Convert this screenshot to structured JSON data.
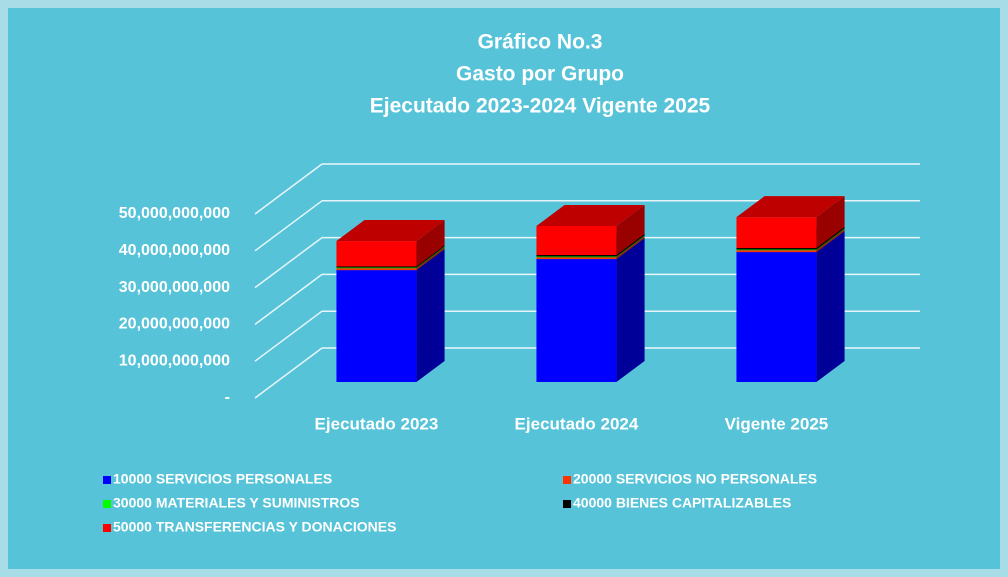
{
  "chart_data": {
    "type": "bar3d_stacked",
    "title": [
      "Gráfico No.3",
      "Gasto por Grupo",
      "Ejecutado 2023-2024 Vigente 2025"
    ],
    "categories": [
      "Ejecutado 2023",
      "Ejecutado 2024",
      "Vigente 2025"
    ],
    "series": [
      {
        "name": "10000  SERVICIOS PERSONALES",
        "color": "#0000ff",
        "values": [
          30400000000,
          33400000000,
          35300000000
        ]
      },
      {
        "name": "20000  SERVICIOS NO PERSONALES",
        "color": "#ff3300",
        "values": [
          500000000,
          500000000,
          500000000
        ]
      },
      {
        "name": "30000  MATERIALES Y SUMINISTROS",
        "color": "#00ff00",
        "values": [
          200000000,
          200000000,
          200000000
        ]
      },
      {
        "name": "40000  BIENES CAPITALIZABLES",
        "color": "#000000",
        "values": [
          300000000,
          400000000,
          400000000
        ]
      },
      {
        "name": "50000  TRANSFERENCIAS Y DONACIONES",
        "color": "#ff0000",
        "values": [
          6900000000,
          7900000000,
          8400000000
        ]
      }
    ],
    "ylim": [
      0,
      50000000000
    ],
    "yticks": [
      {
        "value": 0,
        "label": "-"
      },
      {
        "value": 10000000000,
        "label": "10,000,000,000"
      },
      {
        "value": 20000000000,
        "label": "20,000,000,000"
      },
      {
        "value": 30000000000,
        "label": "30,000,000,000"
      },
      {
        "value": 40000000000,
        "label": "40,000,000,000"
      },
      {
        "value": 50000000000,
        "label": "50,000,000,000"
      }
    ],
    "grid": true
  }
}
